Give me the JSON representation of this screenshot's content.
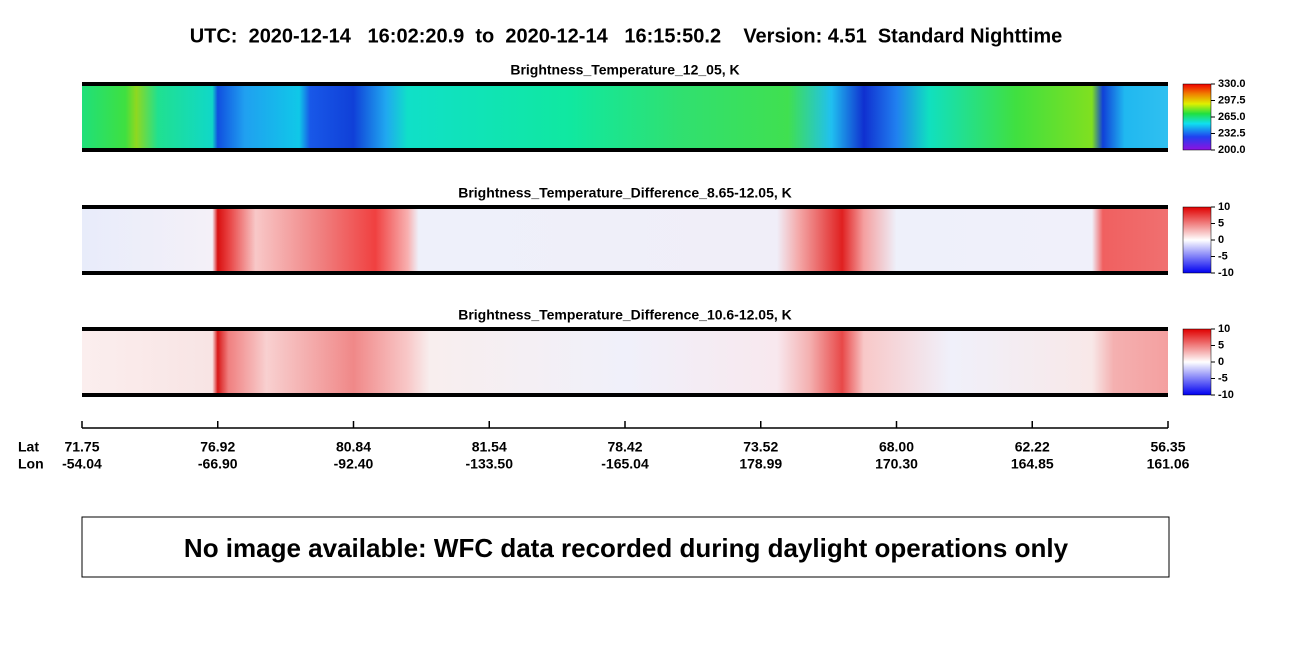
{
  "header": {
    "title": "UTC:  2020-12-14   16:02:20.9  to  2020-12-14   16:15:50.2    Version: 4.51  Standard Nighttime"
  },
  "panels": [
    {
      "title": "Brightness_Temperature_12_05, K",
      "colorbar_ticks": [
        "330.0",
        "297.5",
        "265.0",
        "232.5",
        "200.0"
      ]
    },
    {
      "title": "Brightness_Temperature_Difference_8.65-12.05, K",
      "colorbar_ticks": [
        "10",
        "5",
        "0",
        "-5",
        "-10"
      ]
    },
    {
      "title": "Brightness_Temperature_Difference_10.6-12.05, K",
      "colorbar_ticks": [
        "10",
        "5",
        "0",
        "-5",
        "-10"
      ]
    }
  ],
  "axis": {
    "lat_label": "Lat",
    "lon_label": "Lon",
    "lat": [
      "71.75",
      "76.92",
      "80.84",
      "81.54",
      "78.42",
      "73.52",
      "68.00",
      "62.22",
      "56.35"
    ],
    "lon": [
      "-54.04",
      "-66.90",
      "-92.40",
      "-133.50",
      "-165.04",
      "178.99",
      "170.30",
      "164.85",
      "161.06"
    ]
  },
  "message": "No image available: WFC data recorded during daylight operations only"
}
